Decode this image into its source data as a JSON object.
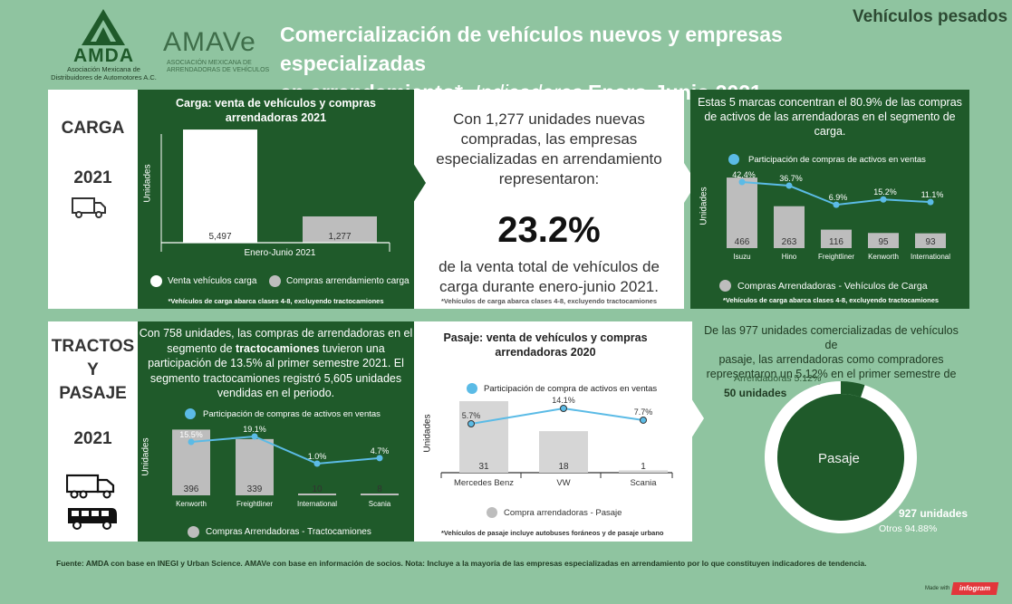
{
  "page": {
    "corner_title": "Vehículos pesados",
    "title_line1": "Comercialización de vehículos nuevos y empresas especializadas",
    "title_line2a": "en arrendamiento*.",
    "title_line2b": "Indicadores",
    "title_line2c": "Enero-Junio 2021",
    "logo1": "AMDA",
    "logo1_sub1": "Asociación Mexicana de",
    "logo1_sub2": "Distribuidores de Automotores A.C.",
    "logo2": "AMAVe",
    "logo2_sub1": "ASOCIACIÓN MEXICANA DE",
    "logo2_sub2": "ARRENDADORAS DE VEHÍCULOS",
    "footer": "Fuente: AMDA con base en INEGI y Urban Science. AMAVe con base en información de socios. Nota: Incluye a la mayoría de las empresas especializadas en arrendamiento por lo que constituyen indicadores de tendencia.",
    "made_with": "Made with",
    "infogram": "infogram"
  },
  "carga": {
    "label": "CARGA",
    "year": "2021",
    "chart_title_1": "Carga: venta de vehículos  y compras",
    "chart_title_2": "arrendadoras 2021",
    "ylabel": "Unidades",
    "legend1": "Venta vehículos carga",
    "legend2": "Compras arrendamiento carga",
    "footnote": "*Vehículos de carga abarca clases 4-8, excluyendo tractocamiones",
    "center_text_1": "Con 1,277 unidades nuevas",
    "center_text_2": "compradas, las empresas",
    "center_text_3": "especializadas en arrendamiento",
    "center_text_4": "representaron:",
    "big_pct": "23.2%",
    "center_text_5": "de la venta total de vehículos de",
    "center_text_6": "carga durante enero-junio 2021.",
    "center_footnote": "*Vehículos de carga abarca clases 4-8, excluyendo tractocamiones",
    "right_text_1": "Estas 5 marcas concentran el 80.9% de las compras",
    "right_text_2": "de activos de las arrendadoras en el segmento de",
    "right_text_3": "carga.",
    "right_line_legend": "Participación de compras de activos en ventas",
    "right_bar_legend": "Compras Arrendadoras - Vehículos de Carga",
    "right_ylabel": "Unidades",
    "right_footnote": "*Vehículos de carga abarca clases 4-8, excluyendo tractocamiones"
  },
  "tractos": {
    "label1": "TRACTOS",
    "label2": "Y",
    "label3": "PASAJE",
    "year": "2021",
    "text_1": "Con 758 unidades, las compras de arrendadoras en el",
    "text_2a": "segmento de ",
    "text_2b": "tractocamiones",
    "text_2c": " tuvieron una",
    "text_3": "participación de 13.5% al primer semestre 2021. El",
    "text_4": "segmento tractocamiones registró 5,605 unidades",
    "text_5": "vendidas en el periodo.",
    "line_legend": "Participación de compras de activos en ventas",
    "bar_legend": "Compras Arrendadoras - Tractocamiones",
    "ylabel": "Unidades"
  },
  "pasaje": {
    "chart_title_1": "Pasaje: venta de vehículos y compras",
    "chart_title_2": "arrendadoras 2020",
    "line_legend": "Participación de compra de activos en ventas",
    "bar_legend": "Compra arrendadoras - Pasaje",
    "ylabel": "Unidades",
    "footnote": "*Vehículos de pasaje incluye autobuses foráneos y de pasaje urbano",
    "right_text_1": "De las 977 unidades comercializadas de vehículos de",
    "right_text_2": "pasaje, las arrendadoras como compradores",
    "right_text_3": "representaron un 5.12% en el primer semestre de 2021.",
    "donut_center": "Pasaje",
    "donut_label_a": "Arrendadoras 5.12%",
    "donut_label_b": "50 unidades",
    "donut_label_c": "927 unidades",
    "donut_label_d": "Otros 94.88%"
  },
  "colors": {
    "background": "#8fc4a0",
    "dark_green": "#1f5a2a",
    "bar_gray": "#bdbdbd",
    "line_blue": "#5bbbe6"
  },
  "chart_data": [
    {
      "type": "bar",
      "name": "Carga: venta de vehículos y compras arrendadoras 2021",
      "categories": [
        "Enero-Junio 2021"
      ],
      "series": [
        {
          "name": "Venta vehículos carga",
          "values": [
            5497
          ],
          "labels": [
            "5,497"
          ],
          "color": "#ffffff"
        },
        {
          "name": "Compras arrendamiento carga",
          "values": [
            1277
          ],
          "labels": [
            "1,277"
          ],
          "color": "#bdbdbd"
        }
      ],
      "ylabel": "Unidades",
      "ylim": [
        0,
        5500
      ]
    },
    {
      "type": "bar",
      "name": "Compras arrendadoras carga por marca",
      "categories": [
        "Isuzu",
        "Hino",
        "Freightliner",
        "Kenworth",
        "International"
      ],
      "series": [
        {
          "name": "Compras Arrendadoras - Vehículos de Carga",
          "values": [
            466,
            263,
            116,
            95,
            93
          ]
        },
        {
          "name": "Participación de compras de activos en ventas",
          "type": "line",
          "values": [
            42.4,
            36.7,
            6.9,
            15.2,
            11.1
          ],
          "labels": [
            "42.4%",
            "36.7%",
            "6.9%",
            "15.2%",
            "11.1%"
          ]
        }
      ],
      "ylabel": "Unidades",
      "ylim": [
        0,
        500
      ]
    },
    {
      "type": "bar",
      "name": "Compras arrendadoras tractocamiones por marca",
      "categories": [
        "Kenworth",
        "Freightliner",
        "International",
        "Scania"
      ],
      "series": [
        {
          "name": "Compras Arrendadoras - Tractocamiones",
          "values": [
            396,
            339,
            10,
            8
          ]
        },
        {
          "name": "Participación de compras de activos en ventas",
          "type": "line",
          "values": [
            15.5,
            19.1,
            1.0,
            4.7
          ],
          "labels": [
            "15.5%",
            "19.1%",
            "1.0%",
            "4.7%"
          ]
        }
      ],
      "ylabel": "Unidades",
      "ylim": [
        0,
        420
      ]
    },
    {
      "type": "bar",
      "name": "Pasaje: venta de vehículos y compras arrendadoras 2020",
      "categories": [
        "Mercedes Benz",
        "VW",
        "Scania"
      ],
      "series": [
        {
          "name": "Compra arrendadoras - Pasaje",
          "values": [
            31,
            18,
            1
          ]
        },
        {
          "name": "Participación de compra de activos en ventas",
          "type": "line",
          "values": [
            5.7,
            14.1,
            7.7
          ],
          "labels": [
            "5.7%",
            "14.1%",
            "7.7%"
          ]
        }
      ],
      "ylabel": "Unidades",
      "ylim": [
        0,
        31
      ]
    },
    {
      "type": "pie",
      "name": "Pasaje",
      "categories": [
        "Arrendadoras",
        "Otros"
      ],
      "values": [
        5.12,
        94.88
      ],
      "units": [
        50,
        927
      ]
    }
  ]
}
